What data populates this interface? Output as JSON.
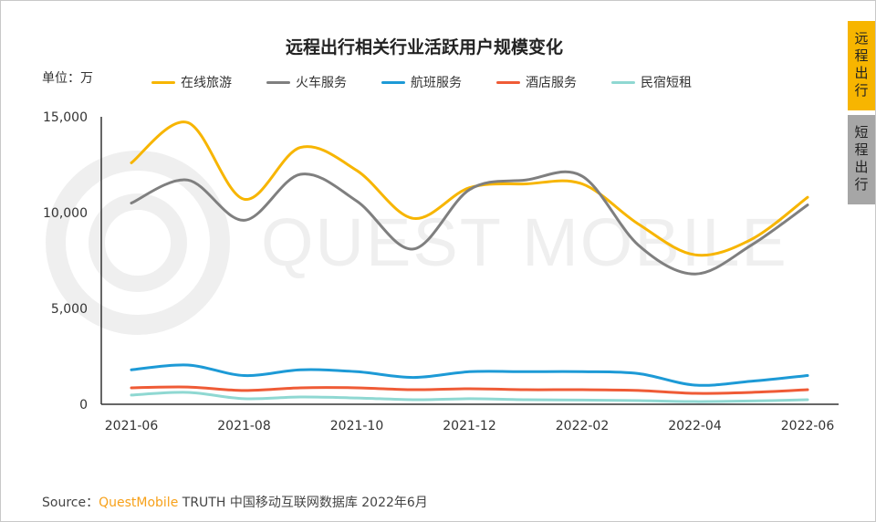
{
  "tabs": [
    {
      "label": "远程出行",
      "active": true,
      "color": "#f7b500"
    },
    {
      "label": "短程出行",
      "active": false,
      "color": "#a6a6a6"
    }
  ],
  "source": {
    "prefix": "Source：",
    "brand": "QuestMobile",
    "rest": " TRUTH 中国移动互联网数据库 2022年6月"
  },
  "watermark": "QUEST MOBILE",
  "chart_data": {
    "type": "line",
    "title": "远程出行相关行业活跃用户规模变化",
    "unit": "单位：万",
    "x": [
      "2021-06",
      "2021-07",
      "2021-08",
      "2021-09",
      "2021-10",
      "2021-11",
      "2021-12",
      "2022-01",
      "2022-02",
      "2022-03",
      "2022-04",
      "2022-05",
      "2022-06"
    ],
    "xticks": [
      "2021-06",
      "2021-08",
      "2021-10",
      "2021-12",
      "2022-02",
      "2022-04",
      "2022-06"
    ],
    "yticks": [
      "0",
      "5,000",
      "10,000",
      "15,000"
    ],
    "ylim": [
      0,
      15000
    ],
    "grid": false,
    "legend": "top",
    "series": [
      {
        "name": "在线旅游",
        "color": "#f7b500",
        "values": [
          12600,
          14700,
          10700,
          13400,
          12200,
          9700,
          11300,
          11500,
          11500,
          9400,
          7800,
          8600,
          10800
        ]
      },
      {
        "name": "火车服务",
        "color": "#7f7f7f",
        "values": [
          10500,
          11700,
          9600,
          12000,
          10600,
          8100,
          11200,
          11700,
          11900,
          8300,
          6800,
          8300,
          10400
        ]
      },
      {
        "name": "航班服务",
        "color": "#1d9ad6",
        "values": [
          1800,
          2050,
          1500,
          1800,
          1700,
          1400,
          1700,
          1700,
          1700,
          1600,
          1000,
          1200,
          1500
        ]
      },
      {
        "name": "酒店服务",
        "color": "#ef5b36",
        "values": [
          860,
          900,
          720,
          860,
          860,
          760,
          810,
          760,
          760,
          720,
          570,
          620,
          760
        ]
      },
      {
        "name": "民宿短租",
        "color": "#8fd8d2",
        "values": [
          480,
          620,
          290,
          380,
          330,
          240,
          290,
          240,
          220,
          190,
          140,
          170,
          240
        ]
      }
    ]
  }
}
